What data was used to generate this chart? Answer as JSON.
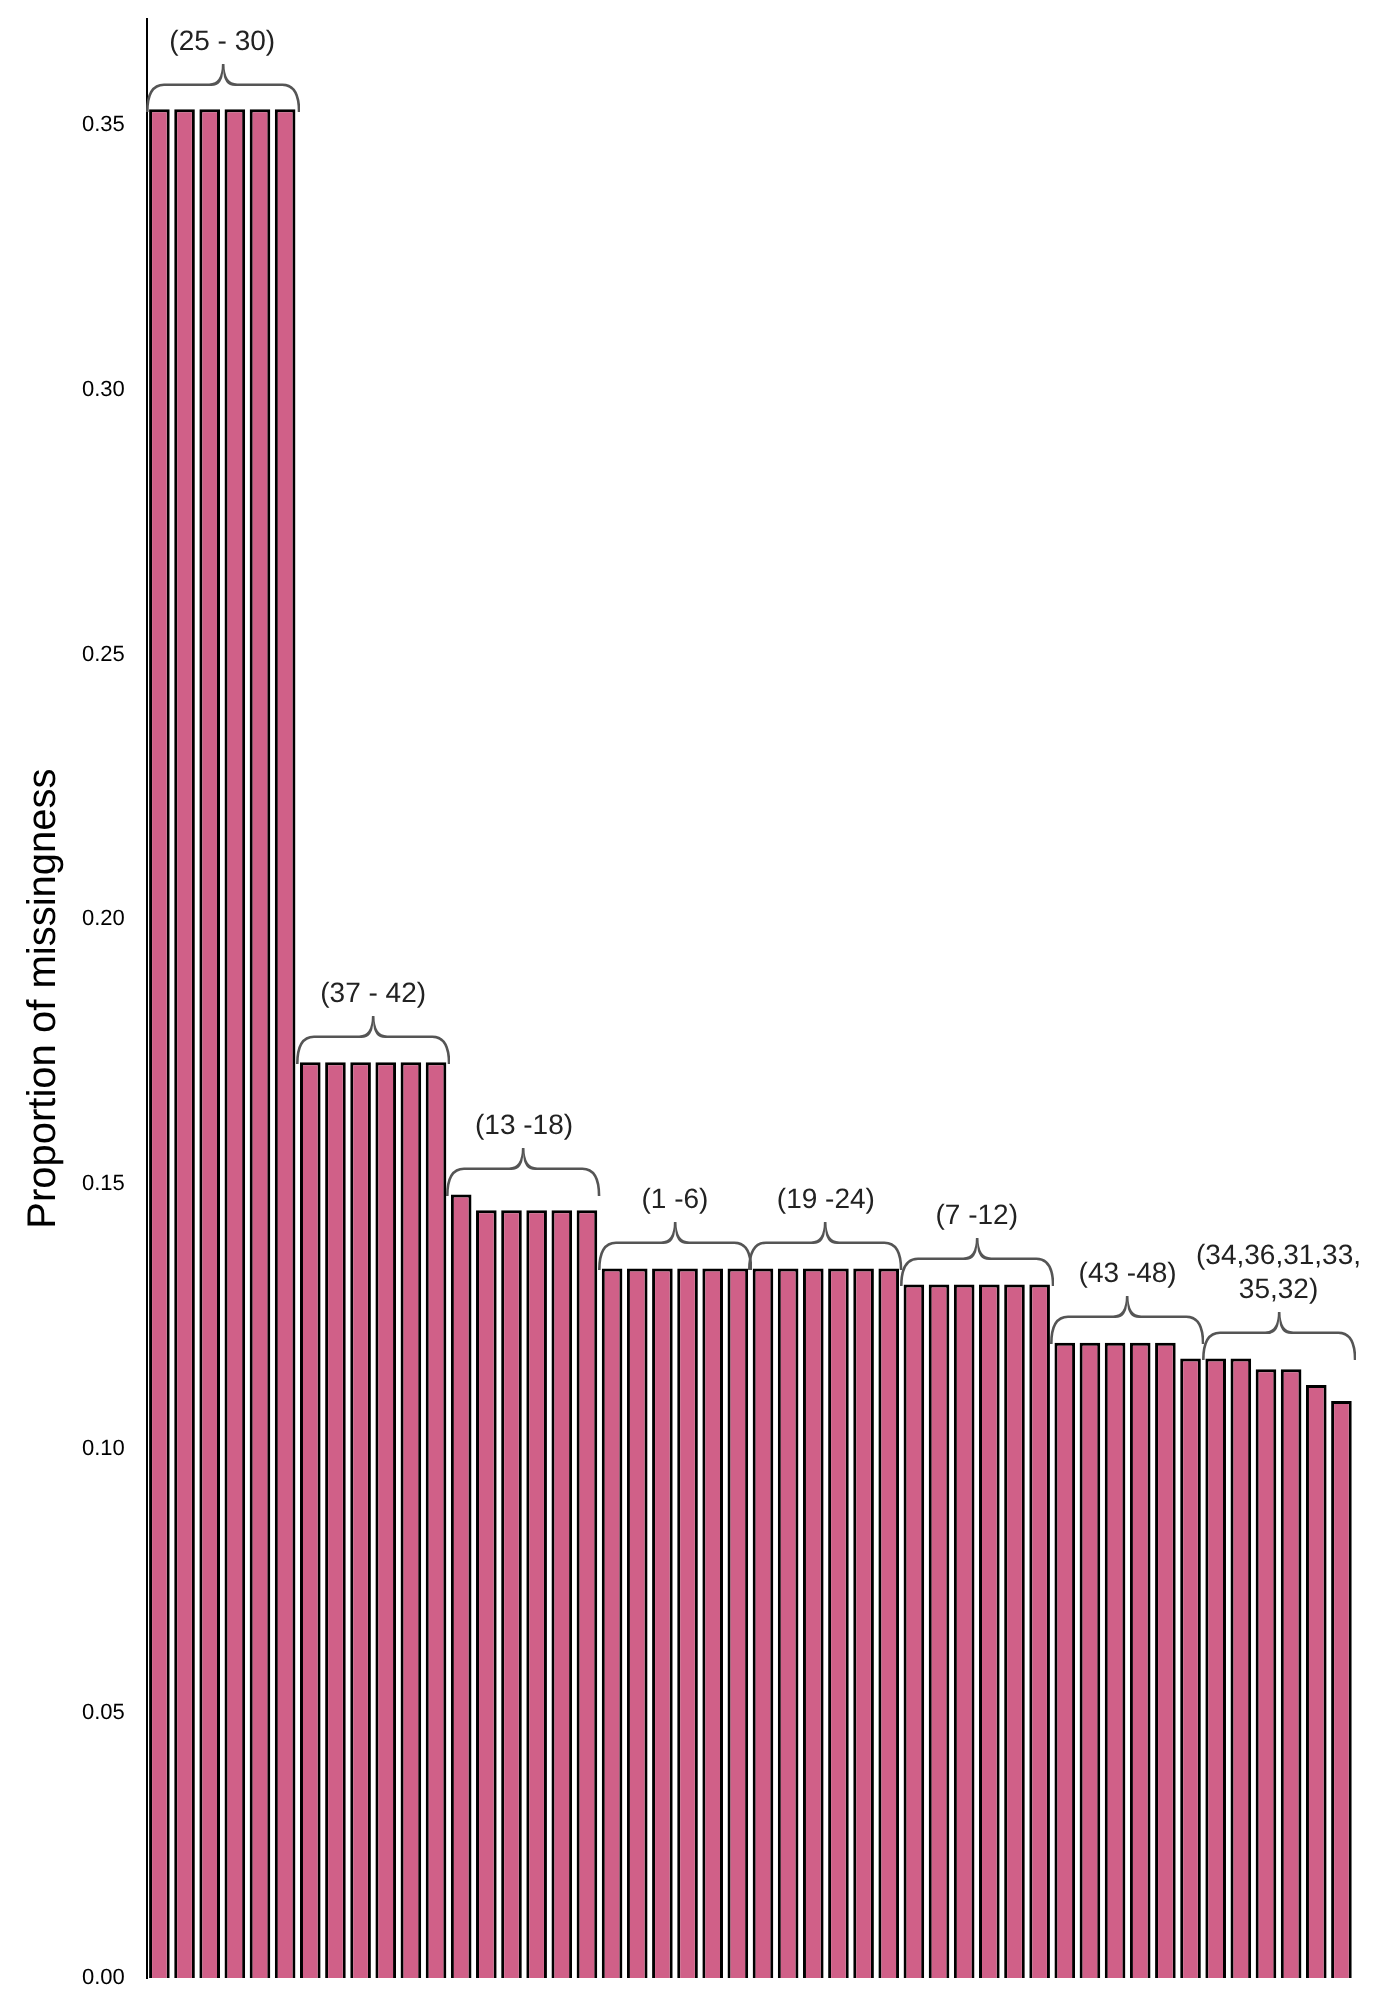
{
  "chart_data": {
    "type": "bar",
    "ylabel": "Proportion of missingness",
    "categories": [
      null,
      null,
      null,
      null,
      null,
      null,
      null,
      null,
      null,
      null,
      null,
      null,
      null,
      null,
      null,
      null,
      null,
      null,
      null,
      null,
      null,
      null,
      null,
      null,
      null,
      null,
      null,
      null,
      null,
      null,
      null,
      null,
      null,
      null,
      null,
      null,
      null,
      null,
      null,
      null,
      null,
      null,
      null,
      null,
      null,
      null,
      null,
      null
    ],
    "values": [
      0.353,
      0.353,
      0.353,
      0.353,
      0.353,
      0.353,
      0.173,
      0.173,
      0.173,
      0.173,
      0.173,
      0.173,
      0.148,
      0.145,
      0.145,
      0.145,
      0.145,
      0.145,
      0.134,
      0.134,
      0.134,
      0.134,
      0.134,
      0.134,
      0.134,
      0.134,
      0.134,
      0.134,
      0.134,
      0.134,
      0.131,
      0.131,
      0.131,
      0.131,
      0.131,
      0.131,
      0.12,
      0.12,
      0.12,
      0.12,
      0.12,
      0.117,
      0.117,
      0.117,
      0.115,
      0.115,
      0.112,
      0.109
    ],
    "color": "#d06088",
    "ylim": [
      0,
      0.37
    ],
    "yticks": [
      {
        "value": 0,
        "label": "0.00"
      },
      {
        "value": 0.05,
        "label": "0.05"
      },
      {
        "value": 0.1,
        "label": "0.10"
      },
      {
        "value": 0.15,
        "label": "0.15"
      },
      {
        "value": 0.2,
        "label": "0.20"
      },
      {
        "value": 0.25,
        "label": "0.25"
      },
      {
        "value": 0.3,
        "label": "0.30"
      },
      {
        "value": 0.35,
        "label": "0.35"
      }
    ],
    "grid": false,
    "legend": false,
    "tick_labels": "y",
    "annotations": [
      "(25 - 30)",
      "(37 - 42)",
      "(13 -18)",
      "(1 -6)",
      "(19 -24)",
      "(7 -12)",
      "(43 -48)",
      "(34,36,31,33, 35,32)"
    ]
  }
}
